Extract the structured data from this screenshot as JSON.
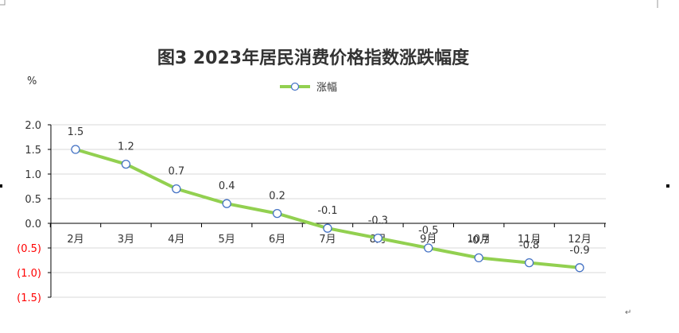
{
  "chart_data": {
    "type": "line",
    "title": "图3 2023年居民消费价格指数涨跌幅度",
    "unit_label": "%",
    "categories": [
      "2月",
      "3月",
      "4月",
      "5月",
      "6月",
      "7月",
      "8月",
      "9月",
      "10月",
      "11月",
      "12月"
    ],
    "series": [
      {
        "name": "涨幅",
        "values": [
          1.5,
          1.2,
          0.7,
          0.4,
          0.2,
          -0.1,
          -0.3,
          -0.5,
          -0.7,
          -0.8,
          -0.9
        ]
      }
    ],
    "data_labels": [
      "1.5",
      "1.2",
      "0.7",
      "0.4",
      "0.2",
      "-0.1",
      "-0.3",
      "-0.5",
      "-0.7",
      "-0.8",
      "-0.9"
    ],
    "y_ticks": [
      {
        "value": 2.0,
        "label": "2.0"
      },
      {
        "value": 1.5,
        "label": "1.5"
      },
      {
        "value": 1.0,
        "label": "1.0"
      },
      {
        "value": 0.5,
        "label": "0.5"
      },
      {
        "value": 0.0,
        "label": "0.0"
      },
      {
        "value": -0.5,
        "label": "(0.5)"
      },
      {
        "value": -1.0,
        "label": "(1.0)"
      },
      {
        "value": -1.5,
        "label": "(1.5)"
      }
    ],
    "ylim": [
      -1.5,
      2.0
    ],
    "grid": true,
    "legend_position": "top-center",
    "colors": {
      "line": "#92d050",
      "marker_stroke": "#4472c4",
      "marker_fill": "#ffffff",
      "grid": "#d9d9d9",
      "axis": "#000000",
      "negative_tick": "#ff0000",
      "positive_tick": "#333333"
    }
  }
}
